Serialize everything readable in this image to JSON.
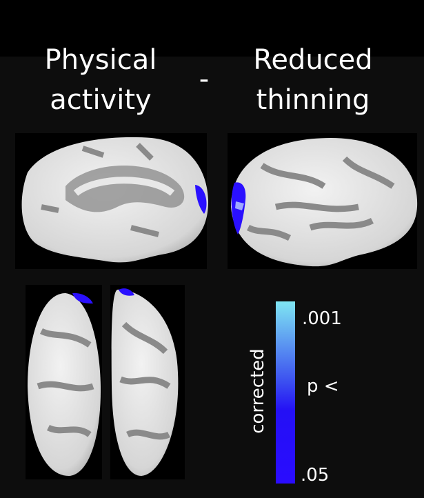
{
  "header": {
    "left": [
      "Physical",
      "activity"
    ],
    "separator": "-",
    "right": [
      "Reduced",
      "thinning"
    ]
  },
  "colorbar": {
    "top_label": ".001",
    "middle_label": "p <",
    "bottom_label": ".05",
    "axis_title": "corrected"
  }
}
